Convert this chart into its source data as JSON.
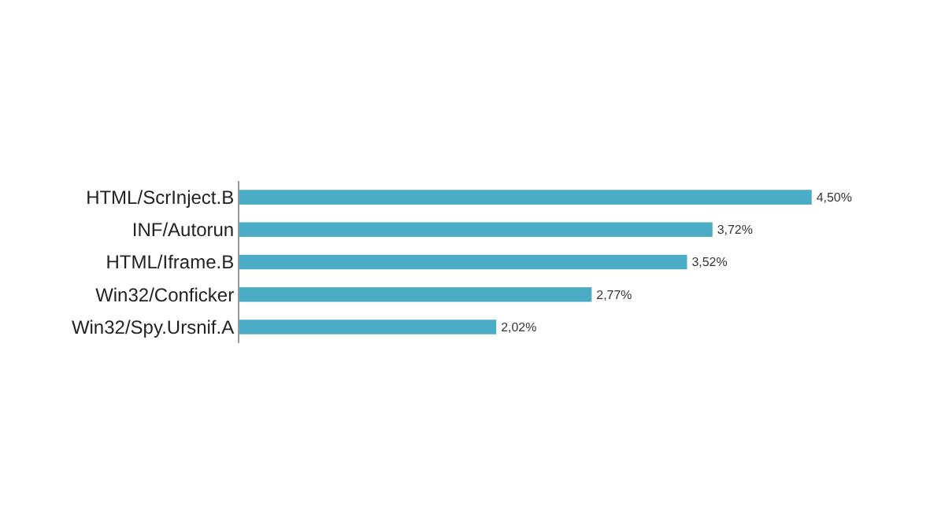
{
  "chart_data": {
    "type": "bar",
    "orientation": "horizontal",
    "categories": [
      "HTML/ScrInject.B",
      "INF/Autorun",
      "HTML/Iframe.B",
      "Win32/Conficker",
      "Win32/Spy.Ursnif.A"
    ],
    "values": [
      4.5,
      3.72,
      3.52,
      2.77,
      2.02
    ],
    "value_labels": [
      "4,50%",
      "3,72%",
      "3,52%",
      "2,77%",
      "2,02%"
    ],
    "color": "#4bacc6"
  }
}
